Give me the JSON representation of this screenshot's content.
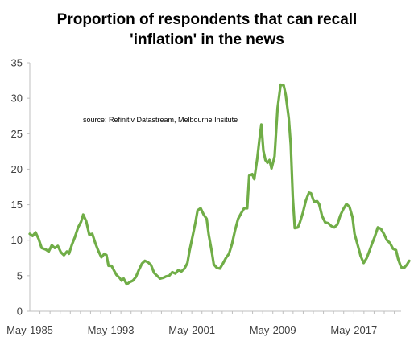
{
  "chart_data": {
    "type": "line",
    "title_lines": [
      "Proportion of respondents that can recall",
      "'inflation' in the news"
    ],
    "annotation": "source:  Refinitiv Datastream, Melbourne Insitute",
    "xlabel": "",
    "ylabel": "",
    "ylim": [
      0,
      35
    ],
    "yticks": [
      "0",
      "5",
      "10",
      "15",
      "20",
      "25",
      "30",
      "35"
    ],
    "xlim": [
      1985.33,
      2022.0
    ],
    "xticks": [
      {
        "label": "May-1985",
        "value": 1985.33
      },
      {
        "label": "May-1993",
        "value": 1993.33
      },
      {
        "label": "May-2001",
        "value": 2001.33
      },
      {
        "label": "May-2009",
        "value": 2009.33
      },
      {
        "label": "May-2017",
        "value": 2017.33
      }
    ],
    "grid": false,
    "legend": "none",
    "colors": {
      "line": "#70ad47",
      "axis": "#bfbfbf",
      "text": "#404040"
    },
    "series": [
      {
        "points": [
          [
            1985.33,
            10.9
          ],
          [
            1985.6,
            10.6
          ],
          [
            1985.9,
            11.1
          ],
          [
            1986.2,
            10.2
          ],
          [
            1986.5,
            8.9
          ],
          [
            1986.9,
            8.7
          ],
          [
            1987.2,
            8.4
          ],
          [
            1987.5,
            9.3
          ],
          [
            1987.8,
            8.9
          ],
          [
            1988.1,
            9.2
          ],
          [
            1988.4,
            8.3
          ],
          [
            1988.7,
            7.9
          ],
          [
            1989.0,
            8.4
          ],
          [
            1989.2,
            8.1
          ],
          [
            1989.5,
            9.4
          ],
          [
            1989.8,
            10.5
          ],
          [
            1990.1,
            11.8
          ],
          [
            1990.4,
            12.6
          ],
          [
            1990.6,
            13.6
          ],
          [
            1990.9,
            12.7
          ],
          [
            1991.2,
            10.8
          ],
          [
            1991.5,
            10.9
          ],
          [
            1991.8,
            9.6
          ],
          [
            1992.1,
            8.5
          ],
          [
            1992.4,
            7.6
          ],
          [
            1992.7,
            8.1
          ],
          [
            1992.9,
            7.9
          ],
          [
            1993.1,
            6.4
          ],
          [
            1993.4,
            6.4
          ],
          [
            1993.7,
            5.6
          ],
          [
            1993.9,
            5.1
          ],
          [
            1994.2,
            4.7
          ],
          [
            1994.4,
            4.3
          ],
          [
            1994.6,
            4.6
          ],
          [
            1994.9,
            3.8
          ],
          [
            1995.2,
            4.1
          ],
          [
            1995.5,
            4.3
          ],
          [
            1995.8,
            4.8
          ],
          [
            1996.1,
            5.8
          ],
          [
            1996.4,
            6.7
          ],
          [
            1996.7,
            7.1
          ],
          [
            1997.0,
            6.9
          ],
          [
            1997.3,
            6.5
          ],
          [
            1997.6,
            5.4
          ],
          [
            1997.9,
            5.0
          ],
          [
            1998.2,
            4.6
          ],
          [
            1998.5,
            4.7
          ],
          [
            1998.8,
            4.9
          ],
          [
            1999.1,
            5.0
          ],
          [
            1999.4,
            5.5
          ],
          [
            1999.7,
            5.3
          ],
          [
            2000.0,
            5.8
          ],
          [
            2000.3,
            5.6
          ],
          [
            2000.6,
            6.0
          ],
          [
            2000.9,
            6.8
          ],
          [
            2001.1,
            8.5
          ],
          [
            2001.4,
            10.5
          ],
          [
            2001.7,
            12.6
          ],
          [
            2001.9,
            14.2
          ],
          [
            2002.2,
            14.5
          ],
          [
            2002.5,
            13.6
          ],
          [
            2002.8,
            13.0
          ],
          [
            2003.0,
            10.8
          ],
          [
            2003.3,
            8.4
          ],
          [
            2003.5,
            6.6
          ],
          [
            2003.8,
            6.1
          ],
          [
            2004.1,
            6.0
          ],
          [
            2004.4,
            6.7
          ],
          [
            2004.7,
            7.5
          ],
          [
            2005.0,
            8.1
          ],
          [
            2005.3,
            9.5
          ],
          [
            2005.6,
            11.4
          ],
          [
            2005.9,
            13.0
          ],
          [
            2006.2,
            13.8
          ],
          [
            2006.5,
            14.5
          ],
          [
            2006.8,
            14.5
          ],
          [
            2007.0,
            19.1
          ],
          [
            2007.3,
            19.3
          ],
          [
            2007.5,
            18.6
          ],
          [
            2007.8,
            21.6
          ],
          [
            2008.0,
            24.1
          ],
          [
            2008.2,
            26.3
          ],
          [
            2008.4,
            22.6
          ],
          [
            2008.6,
            21.3
          ],
          [
            2008.8,
            20.9
          ],
          [
            2009.0,
            21.3
          ],
          [
            2009.2,
            20.1
          ],
          [
            2009.5,
            21.8
          ],
          [
            2009.8,
            28.6
          ],
          [
            2010.1,
            31.9
          ],
          [
            2010.4,
            31.8
          ],
          [
            2010.6,
            30.5
          ],
          [
            2010.9,
            27.2
          ],
          [
            2011.1,
            23.4
          ],
          [
            2011.3,
            16.1
          ],
          [
            2011.5,
            11.7
          ],
          [
            2011.8,
            11.8
          ],
          [
            2012.0,
            12.5
          ],
          [
            2012.3,
            13.9
          ],
          [
            2012.6,
            15.6
          ],
          [
            2012.9,
            16.7
          ],
          [
            2013.1,
            16.6
          ],
          [
            2013.4,
            15.4
          ],
          [
            2013.7,
            15.5
          ],
          [
            2013.9,
            15.1
          ],
          [
            2014.2,
            13.4
          ],
          [
            2014.5,
            12.5
          ],
          [
            2014.8,
            12.4
          ],
          [
            2015.1,
            12.0
          ],
          [
            2015.4,
            11.8
          ],
          [
            2015.7,
            12.2
          ],
          [
            2016.0,
            13.5
          ],
          [
            2016.3,
            14.4
          ],
          [
            2016.6,
            15.1
          ],
          [
            2016.9,
            14.7
          ],
          [
            2017.2,
            13.2
          ],
          [
            2017.4,
            10.9
          ],
          [
            2017.7,
            9.4
          ],
          [
            2018.0,
            7.8
          ],
          [
            2018.3,
            6.8
          ],
          [
            2018.6,
            7.5
          ],
          [
            2018.9,
            8.6
          ],
          [
            2019.1,
            9.4
          ],
          [
            2019.4,
            10.5
          ],
          [
            2019.7,
            11.8
          ],
          [
            2020.0,
            11.6
          ],
          [
            2020.3,
            10.9
          ],
          [
            2020.6,
            10.0
          ],
          [
            2020.9,
            9.6
          ],
          [
            2021.2,
            8.8
          ],
          [
            2021.5,
            8.6
          ],
          [
            2021.7,
            7.4
          ],
          [
            2022.0,
            6.2
          ],
          [
            2022.3,
            6.1
          ],
          [
            2022.6,
            6.6
          ],
          [
            2022.8,
            7.1
          ]
        ]
      }
    ]
  }
}
